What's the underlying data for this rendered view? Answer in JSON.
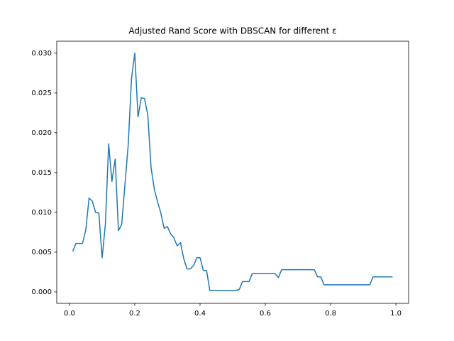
{
  "chart_data": {
    "type": "line",
    "title": "Adjusted Rand Score with DBSCAN for different ε",
    "x": [
      0.01,
      0.02,
      0.03,
      0.04,
      0.05,
      0.06,
      0.07,
      0.08,
      0.09,
      0.1,
      0.11,
      0.12,
      0.13,
      0.14,
      0.15,
      0.16,
      0.17,
      0.18,
      0.19,
      0.2,
      0.21,
      0.22,
      0.23,
      0.24,
      0.25,
      0.26,
      0.27,
      0.28,
      0.29,
      0.3,
      0.31,
      0.32,
      0.33,
      0.34,
      0.35,
      0.36,
      0.37,
      0.38,
      0.39,
      0.4,
      0.41,
      0.42,
      0.43,
      0.44,
      0.45,
      0.46,
      0.47,
      0.48,
      0.49,
      0.5,
      0.51,
      0.52,
      0.53,
      0.54,
      0.55,
      0.56,
      0.57,
      0.58,
      0.59,
      0.6,
      0.61,
      0.62,
      0.63,
      0.64,
      0.65,
      0.66,
      0.67,
      0.68,
      0.69,
      0.7,
      0.71,
      0.72,
      0.73,
      0.74,
      0.75,
      0.76,
      0.77,
      0.78,
      0.79,
      0.8,
      0.81,
      0.82,
      0.83,
      0.84,
      0.85,
      0.86,
      0.87,
      0.88,
      0.89,
      0.9,
      0.91,
      0.92,
      0.93,
      0.94,
      0.95,
      0.96,
      0.97,
      0.98,
      0.99
    ],
    "series": [
      {
        "color": "#1f77b4",
        "values": [
          0.0051,
          0.0061,
          0.0061,
          0.0061,
          0.0078,
          0.0118,
          0.0114,
          0.01,
          0.0099,
          0.0043,
          0.0085,
          0.0186,
          0.0139,
          0.0167,
          0.0077,
          0.0085,
          0.0135,
          0.0185,
          0.0268,
          0.03,
          0.022,
          0.0244,
          0.0243,
          0.0222,
          0.0156,
          0.0129,
          0.0113,
          0.0099,
          0.008,
          0.0082,
          0.0073,
          0.0068,
          0.0058,
          0.0062,
          0.0042,
          0.0029,
          0.0029,
          0.0033,
          0.0043,
          0.0043,
          0.0027,
          0.0027,
          0.0002,
          0.0002,
          0.0002,
          0.0002,
          0.0002,
          0.0002,
          0.0002,
          0.0002,
          0.0002,
          0.0003,
          0.0013,
          0.0013,
          0.0013,
          0.0023,
          0.0023,
          0.0023,
          0.0023,
          0.0023,
          0.0023,
          0.0023,
          0.0023,
          0.0018,
          0.0028,
          0.0028,
          0.0028,
          0.0028,
          0.0028,
          0.0028,
          0.0028,
          0.0028,
          0.0028,
          0.0028,
          0.0028,
          0.0019,
          0.0019,
          0.0009,
          0.0009,
          0.0009,
          0.0009,
          0.0009,
          0.0009,
          0.0009,
          0.0009,
          0.0009,
          0.0009,
          0.0009,
          0.0009,
          0.0009,
          0.0009,
          0.0009,
          0.0019,
          0.0019,
          0.0019,
          0.0019,
          0.0019,
          0.0019,
          0.0019
        ]
      }
    ],
    "xlim": [
      -0.039,
      1.039
    ],
    "ylim": [
      -0.00143,
      0.0315
    ],
    "xticks": [
      {
        "value": 0,
        "label": "0.0"
      },
      0.2,
      0.4,
      0.6,
      0.8,
      {
        "value": 1,
        "label": "1.0"
      }
    ],
    "yticks": [
      {
        "value": 0,
        "label": "0.000"
      },
      {
        "value": 0.005,
        "label": "0.005"
      },
      {
        "value": 0.01,
        "label": "0.010"
      },
      {
        "value": 0.015,
        "label": "0.015"
      },
      {
        "value": 0.02,
        "label": "0.020"
      },
      {
        "value": 0.025,
        "label": "0.025"
      },
      {
        "value": 0.03,
        "label": "0.030"
      }
    ],
    "grid": false
  }
}
